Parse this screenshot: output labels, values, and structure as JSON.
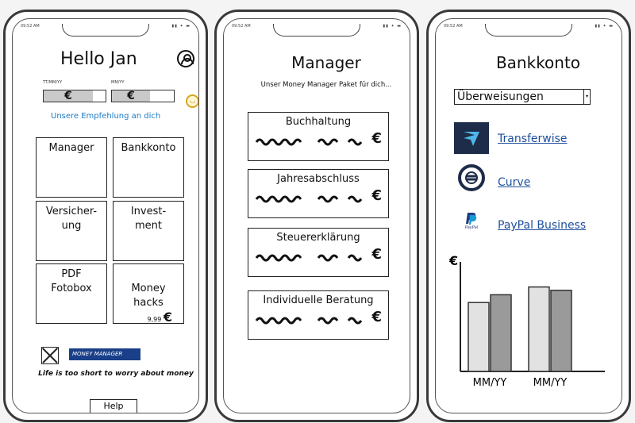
{
  "status": {
    "time": "09:52 AM",
    "signal": "▮▮ ✦ ▬"
  },
  "phone1": {
    "title": "Hello Jan",
    "date_label_1": "TT/MM/YY",
    "date_label_2": "MM/YY",
    "field_1_value": "€",
    "field_2_value": "€",
    "mood_icon": "smiley-icon",
    "recommendation": "Unsere Empfehlung an dich",
    "tiles": [
      {
        "label": "Manager"
      },
      {
        "label": "Bankkonto"
      },
      {
        "label": "Versicher-\nung"
      },
      {
        "label": "Invest-\nment"
      },
      {
        "label": "PDF\nFotobox"
      },
      {
        "label": "Money\nhacks",
        "price": "9,99",
        "currency": "€"
      }
    ],
    "logo_text": "MONEY MANAGER",
    "slogan": "Life is too short to worry about money",
    "help_button": "Help"
  },
  "phone2": {
    "title": "Manager",
    "subtitle": "Unser Money Manager Paket für dich...",
    "packages": [
      {
        "name": "Buchhaltung",
        "currency": "€"
      },
      {
        "name": "Jahresabschluss",
        "currency": "€"
      },
      {
        "name": "Steuererklärung",
        "currency": "€"
      },
      {
        "name": "Individuelle Beratung",
        "currency": "€"
      }
    ]
  },
  "phone3": {
    "title": "Bankkonto",
    "dropdown_value": "Überweisungen",
    "links": [
      {
        "label": "Transferwise",
        "icon": "transferwise-logo-icon"
      },
      {
        "label": "Curve",
        "icon": "curve-logo-icon"
      },
      {
        "label": "PayPal Business",
        "icon": "paypal-logo-icon",
        "logo_text": "PayPal"
      }
    ],
    "chart_data": {
      "type": "bar",
      "ylabel": "€",
      "categories": [
        "MM/YY",
        "MM/YY"
      ],
      "series": [
        {
          "values": [
            62,
            76
          ],
          "color": "#e2e2e2"
        },
        {
          "values": [
            69,
            73
          ],
          "color": "#9a9a9a"
        }
      ],
      "ylim": [
        0,
        100
      ]
    }
  }
}
